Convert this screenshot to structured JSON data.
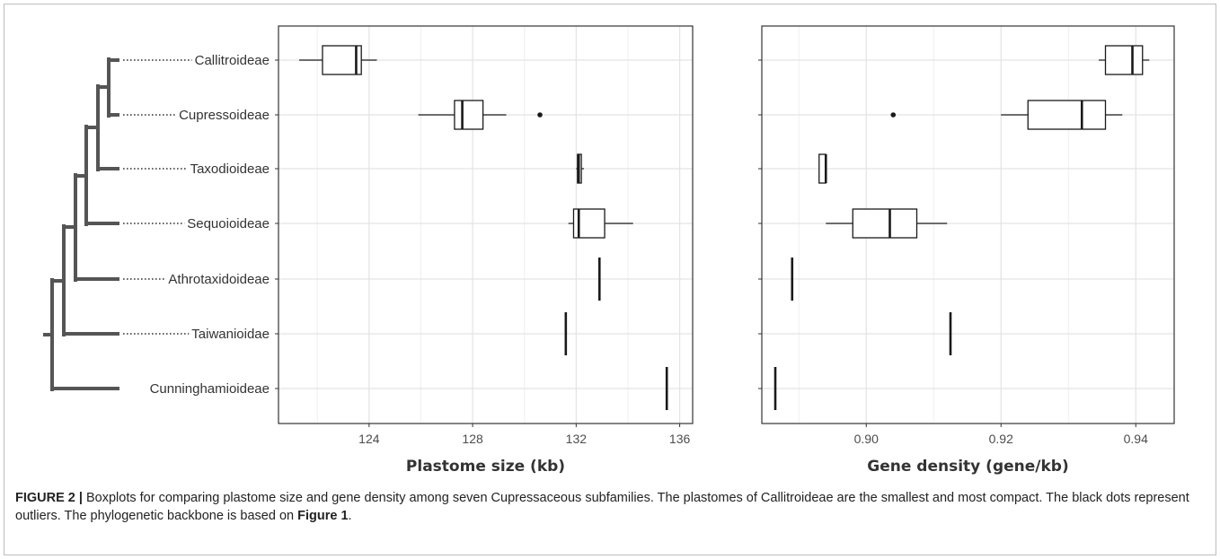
{
  "caption": {
    "label": "FIGURE 2 |",
    "text_before": " Boxplots for comparing plastome size and gene density among seven Cupressaceous subfamilies. The plastomes of Callitroideae are the smallest and most compact. The black dots represent outliers. The phylogenetic backbone is based on ",
    "link": "Figure 1",
    "text_after": "."
  },
  "colors": {
    "box_stroke": "#1a1a1a",
    "grid": "#e3e3e3",
    "tree": "#555555",
    "panel_border": "#333333"
  },
  "taxa": [
    "Callitroideae",
    "Cupressoideae",
    "Taxodioideae",
    "Sequoioideae",
    "Athrotaxidoideae",
    "Taiwanioidae",
    "Cunninghamioideae"
  ],
  "chart_data": [
    {
      "type": "boxplot",
      "orientation": "horizontal",
      "xlabel": "Plastome size (kb)",
      "xlim": [
        120.5,
        136.5
      ],
      "xticks": [
        "124",
        "128",
        "132",
        "136"
      ],
      "xtick_values": [
        124,
        128,
        132,
        136
      ],
      "grid": true,
      "categories": [
        "Callitroideae",
        "Cupressoideae",
        "Taxodioideae",
        "Sequoioideae",
        "Athrotaxidoideae",
        "Taiwanioidae",
        "Cunninghamioideae"
      ],
      "boxes": [
        {
          "min": 121.3,
          "q1": 122.2,
          "median": 123.5,
          "q3": 123.7,
          "max": 124.3,
          "outliers": []
        },
        {
          "min": 125.9,
          "q1": 127.3,
          "median": 127.6,
          "q3": 128.4,
          "max": 129.3,
          "outliers": [
            130.6
          ]
        },
        {
          "min": 132.0,
          "q1": 132.05,
          "median": 132.1,
          "q3": 132.2,
          "max": 132.3,
          "outliers": []
        },
        {
          "min": 131.7,
          "q1": 131.9,
          "median": 132.1,
          "q3": 133.1,
          "max": 134.2,
          "outliers": []
        },
        {
          "min": 132.9,
          "q1": 132.9,
          "median": 132.9,
          "q3": 132.9,
          "max": 132.9,
          "outliers": []
        },
        {
          "min": 131.6,
          "q1": 131.6,
          "median": 131.6,
          "q3": 131.6,
          "max": 131.6,
          "outliers": []
        },
        {
          "min": 135.5,
          "q1": 135.5,
          "median": 135.5,
          "q3": 135.5,
          "max": 135.5,
          "outliers": []
        }
      ]
    },
    {
      "type": "boxplot",
      "orientation": "horizontal",
      "xlabel": "Gene density (gene/kb)",
      "xlim": [
        0.8845,
        0.9457
      ],
      "xticks": [
        "0.90",
        "0.92",
        "0.94"
      ],
      "xtick_values": [
        0.9,
        0.92,
        0.94
      ],
      "grid": true,
      "categories": [
        "Callitroideae",
        "Cupressoideae",
        "Taxodioideae",
        "Sequoioideae",
        "Athrotaxidoideae",
        "Taiwanioidae",
        "Cunninghamioideae"
      ],
      "boxes": [
        {
          "min": 0.9345,
          "q1": 0.9355,
          "median": 0.9395,
          "q3": 0.941,
          "max": 0.942,
          "outliers": []
        },
        {
          "min": 0.92,
          "q1": 0.924,
          "median": 0.932,
          "q3": 0.9355,
          "max": 0.938,
          "outliers": [
            0.904
          ]
        },
        {
          "min": 0.893,
          "q1": 0.893,
          "median": 0.894,
          "q3": 0.894,
          "max": 0.894,
          "outliers": []
        },
        {
          "min": 0.894,
          "q1": 0.898,
          "median": 0.9035,
          "q3": 0.9075,
          "max": 0.912,
          "outliers": []
        },
        {
          "min": 0.889,
          "q1": 0.889,
          "median": 0.889,
          "q3": 0.889,
          "max": 0.889,
          "outliers": []
        },
        {
          "min": 0.9125,
          "q1": 0.9125,
          "median": 0.9125,
          "q3": 0.9125,
          "max": 0.9125,
          "outliers": []
        },
        {
          "min": 0.8865,
          "q1": 0.8865,
          "median": 0.8865,
          "q3": 0.8865,
          "max": 0.8865,
          "outliers": []
        }
      ]
    }
  ]
}
